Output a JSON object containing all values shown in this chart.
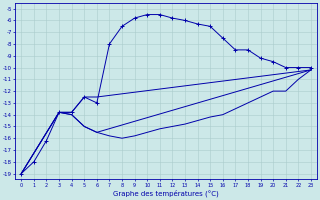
{
  "xlabel": "Graphe des températures (°C)",
  "background_color": "#cce8e8",
  "line_color": "#0000aa",
  "grid_color": "#aacccc",
  "xlim": [
    -0.5,
    23.5
  ],
  "ylim": [
    -19.5,
    -4.5
  ],
  "xticks": [
    0,
    1,
    2,
    3,
    4,
    5,
    6,
    7,
    8,
    9,
    10,
    11,
    12,
    13,
    14,
    15,
    16,
    17,
    18,
    19,
    20,
    21,
    22,
    23
  ],
  "yticks": [
    -19,
    -18,
    -17,
    -16,
    -15,
    -14,
    -13,
    -12,
    -11,
    -10,
    -9,
    -8,
    -7,
    -6,
    -5
  ],
  "series1_x": [
    0,
    1,
    2,
    3,
    4,
    5,
    6,
    7,
    8,
    9,
    10,
    11,
    12,
    13,
    14,
    15,
    16,
    17,
    18,
    19,
    20,
    21,
    22,
    23
  ],
  "series1_y": [
    -19,
    -18,
    -16.2,
    -13.8,
    -13.8,
    -12.5,
    -13,
    -8,
    -6.5,
    -5.8,
    -5.5,
    -5.5,
    -5.8,
    -6,
    -6.3,
    -6.5,
    -7.5,
    -8.5,
    -8.5,
    -9.2,
    -9.5,
    -10,
    -10,
    -10
  ],
  "series2_x": [
    0,
    3,
    4,
    5,
    6,
    23
  ],
  "series2_y": [
    -19,
    -13.8,
    -13.8,
    -12.5,
    -12.5,
    -10.2
  ],
  "series3_x": [
    0,
    3,
    4,
    5,
    6,
    23
  ],
  "series3_y": [
    -19,
    -13.8,
    -14,
    -15,
    -15.5,
    -10.2
  ],
  "series4_x": [
    0,
    3,
    4,
    5,
    6,
    7,
    8,
    9,
    10,
    11,
    12,
    13,
    14,
    15,
    16,
    17,
    18,
    19,
    20,
    21,
    22,
    23
  ],
  "series4_y": [
    -19,
    -13.8,
    -14,
    -15,
    -15.5,
    -15.8,
    -16,
    -15.8,
    -15.5,
    -15.2,
    -15,
    -14.8,
    -14.5,
    -14.2,
    -14,
    -13.5,
    -13,
    -12.5,
    -12,
    -12,
    -11,
    -10.2
  ]
}
